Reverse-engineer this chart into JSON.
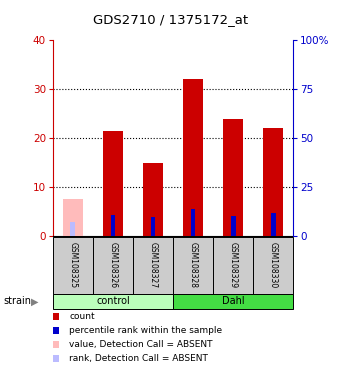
{
  "title": "GDS2710 / 1375172_at",
  "samples": [
    "GSM108325",
    "GSM108326",
    "GSM108327",
    "GSM108328",
    "GSM108329",
    "GSM108330"
  ],
  "groups": [
    "control",
    "control",
    "control",
    "Dahl",
    "Dahl",
    "Dahl"
  ],
  "count_values": [
    null,
    21.5,
    15.0,
    32.0,
    24.0,
    22.0
  ],
  "count_absent": [
    7.5,
    null,
    null,
    null,
    null,
    null
  ],
  "rank_values": [
    null,
    10.8,
    10.0,
    14.0,
    10.5,
    12.0
  ],
  "rank_absent": [
    7.0,
    null,
    null,
    null,
    null,
    null
  ],
  "left_ylim": [
    0,
    40
  ],
  "right_ylim": [
    0,
    100
  ],
  "left_yticks": [
    0,
    10,
    20,
    30,
    40
  ],
  "right_yticks": [
    0,
    25,
    50,
    75,
    100
  ],
  "right_yticklabels": [
    "0",
    "25",
    "50",
    "75",
    "100%"
  ],
  "left_color": "#cc0000",
  "right_color": "#0000cc",
  "red_bar_width": 0.5,
  "blue_bar_width": 0.12,
  "group_control_color": "#bbffbb",
  "group_dahl_color": "#44dd44",
  "sample_box_color": "#cccccc",
  "grid_color": "#000000",
  "absent_bar_color": "#ffbbbb",
  "absent_rank_color": "#bbbbff",
  "legend_items": [
    {
      "color": "#cc0000",
      "label": "count"
    },
    {
      "color": "#0000cc",
      "label": "percentile rank within the sample"
    },
    {
      "color": "#ffbbbb",
      "label": "value, Detection Call = ABSENT"
    },
    {
      "color": "#bbbbff",
      "label": "rank, Detection Call = ABSENT"
    }
  ]
}
